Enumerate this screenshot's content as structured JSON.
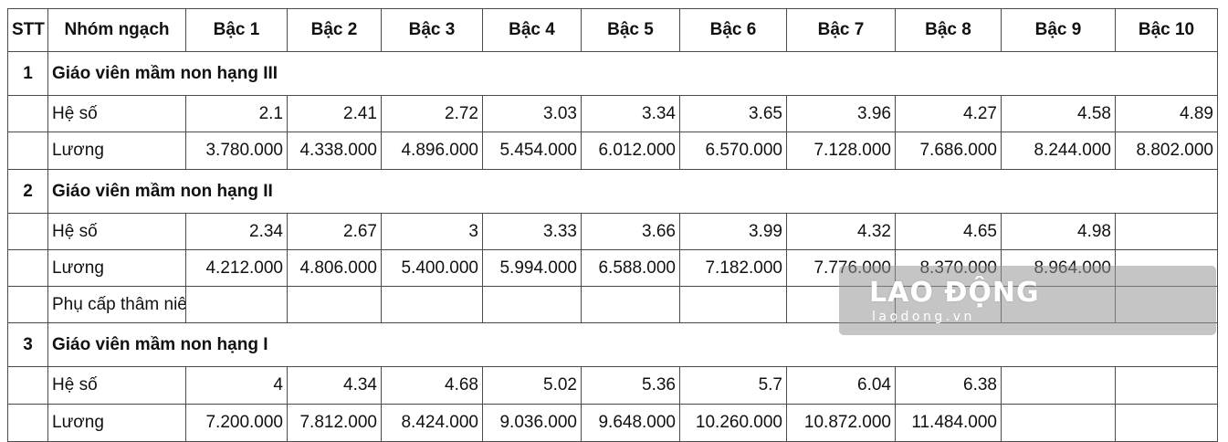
{
  "headers": [
    "STT",
    "Nhóm ngạch",
    "Bậc 1",
    "Bậc 2",
    "Bậc 3",
    "Bậc 4",
    "Bậc 5",
    "Bậc 6",
    "Bậc 7",
    "Bậc 8",
    "Bậc 9",
    "Bậc 10"
  ],
  "groups": [
    {
      "stt": "1",
      "name": "Giáo viên mầm non hạng III",
      "rows": [
        {
          "label": "Hệ số",
          "values": [
            "2.1",
            "2.41",
            "2.72",
            "3.03",
            "3.34",
            "3.65",
            "3.96",
            "4.27",
            "4.58",
            "4.89"
          ]
        },
        {
          "label": "Lương",
          "values": [
            "3.780.000",
            "4.338.000",
            "4.896.000",
            "5.454.000",
            "6.012.000",
            "6.570.000",
            "7.128.000",
            "7.686.000",
            "8.244.000",
            "8.802.000"
          ]
        }
      ]
    },
    {
      "stt": "2",
      "name": "Giáo viên mầm non hạng II",
      "rows": [
        {
          "label": "Hệ số",
          "values": [
            "2.34",
            "2.67",
            "3",
            "3.33",
            "3.66",
            "3.99",
            "4.32",
            "4.65",
            "4.98",
            ""
          ]
        },
        {
          "label": "Lương",
          "values": [
            "4.212.000",
            "4.806.000",
            "5.400.000",
            "5.994.000",
            "6.588.000",
            "7.182.000",
            "7.776.000",
            "8.370.000",
            "8.964.000",
            ""
          ]
        },
        {
          "label": "Phụ cấp thâm niên",
          "values": [
            "",
            "",
            "",
            "",
            "",
            "",
            "",
            "",
            "",
            ""
          ]
        }
      ]
    },
    {
      "stt": "3",
      "name": "Giáo viên mầm non hạng I",
      "rows": [
        {
          "label": "Hệ số",
          "values": [
            "4",
            "4.34",
            "4.68",
            "5.02",
            "5.36",
            "5.7",
            "6.04",
            "6.38",
            "",
            ""
          ]
        },
        {
          "label": "Lương",
          "values": [
            "7.200.000",
            "7.812.000",
            "8.424.000",
            "9.036.000",
            "9.648.000",
            "10.260.000",
            "10.872.000",
            "11.484.000",
            "",
            ""
          ]
        }
      ]
    }
  ],
  "watermark": {
    "logo": "LAO ĐỘNG",
    "url": "laodong.vn"
  }
}
